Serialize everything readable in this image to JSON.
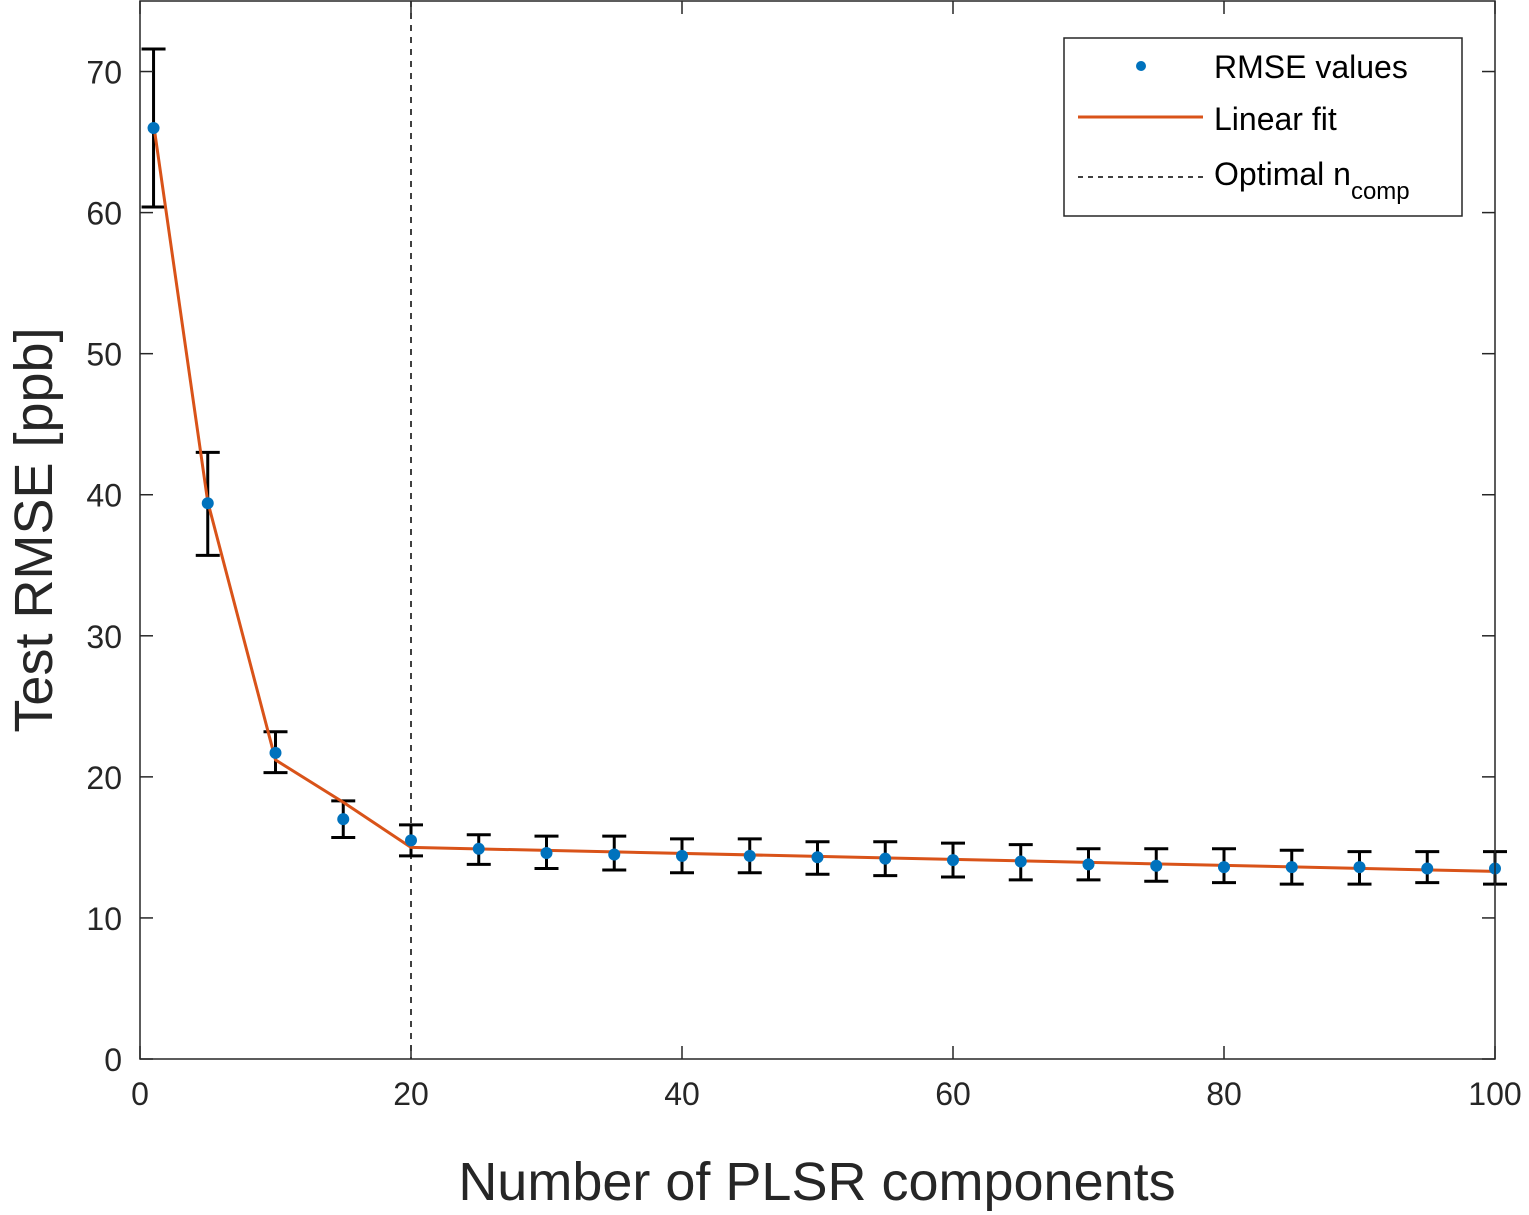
{
  "chart_data": {
    "type": "line",
    "title": "",
    "xlabel": "Number of PLSR components",
    "ylabel": "Test RMSE [ppb]",
    "xlim": [
      0,
      100
    ],
    "ylim": [
      0,
      75
    ],
    "xticks": [
      0,
      20,
      40,
      60,
      80,
      100
    ],
    "yticks": [
      0,
      10,
      20,
      30,
      40,
      50,
      60,
      70
    ],
    "xtick_labels": [
      "0",
      "20",
      "40",
      "60",
      "80",
      "100"
    ],
    "ytick_labels": [
      "0",
      "10",
      "20",
      "30",
      "40",
      "50",
      "60",
      "70"
    ],
    "grid": false,
    "legend_position": "top-right",
    "legend": [
      {
        "label": "RMSE values",
        "subscript": "",
        "style": "marker"
      },
      {
        "label": "Linear fit",
        "subscript": "",
        "style": "solid-line"
      },
      {
        "label": "Optimal n",
        "subscript": "comp",
        "style": "dashed-line"
      }
    ],
    "series": [
      {
        "name": "RMSE values",
        "color": "#0072BD",
        "x": [
          1,
          5,
          10,
          15,
          20,
          25,
          30,
          35,
          40,
          45,
          50,
          55,
          60,
          65,
          70,
          75,
          80,
          85,
          90,
          95,
          100
        ],
        "y": [
          66.0,
          39.4,
          21.7,
          17.0,
          15.5,
          14.9,
          14.6,
          14.5,
          14.4,
          14.4,
          14.3,
          14.2,
          14.1,
          14.0,
          13.8,
          13.7,
          13.6,
          13.6,
          13.6,
          13.5,
          13.5
        ],
        "err_upper": [
          71.6,
          43.0,
          23.2,
          18.3,
          16.6,
          15.9,
          15.8,
          15.8,
          15.6,
          15.6,
          15.4,
          15.4,
          15.3,
          15.2,
          14.9,
          14.9,
          14.9,
          14.8,
          14.7,
          14.7,
          14.7
        ],
        "err_lower": [
          60.4,
          35.7,
          20.3,
          15.7,
          14.4,
          13.8,
          13.5,
          13.4,
          13.2,
          13.2,
          13.1,
          13.0,
          12.9,
          12.7,
          12.7,
          12.6,
          12.5,
          12.4,
          12.4,
          12.5,
          12.4
        ]
      },
      {
        "name": "Linear fit",
        "color": "#D95319",
        "x": [
          1,
          5,
          10,
          15,
          20,
          100
        ],
        "y": [
          66.3,
          39.5,
          21.2,
          18.2,
          15.0,
          13.3
        ]
      }
    ],
    "vertical_line": {
      "name": "Optimal n_comp",
      "x": 20,
      "color": "#000000"
    },
    "errorbar_color": "#000000"
  }
}
